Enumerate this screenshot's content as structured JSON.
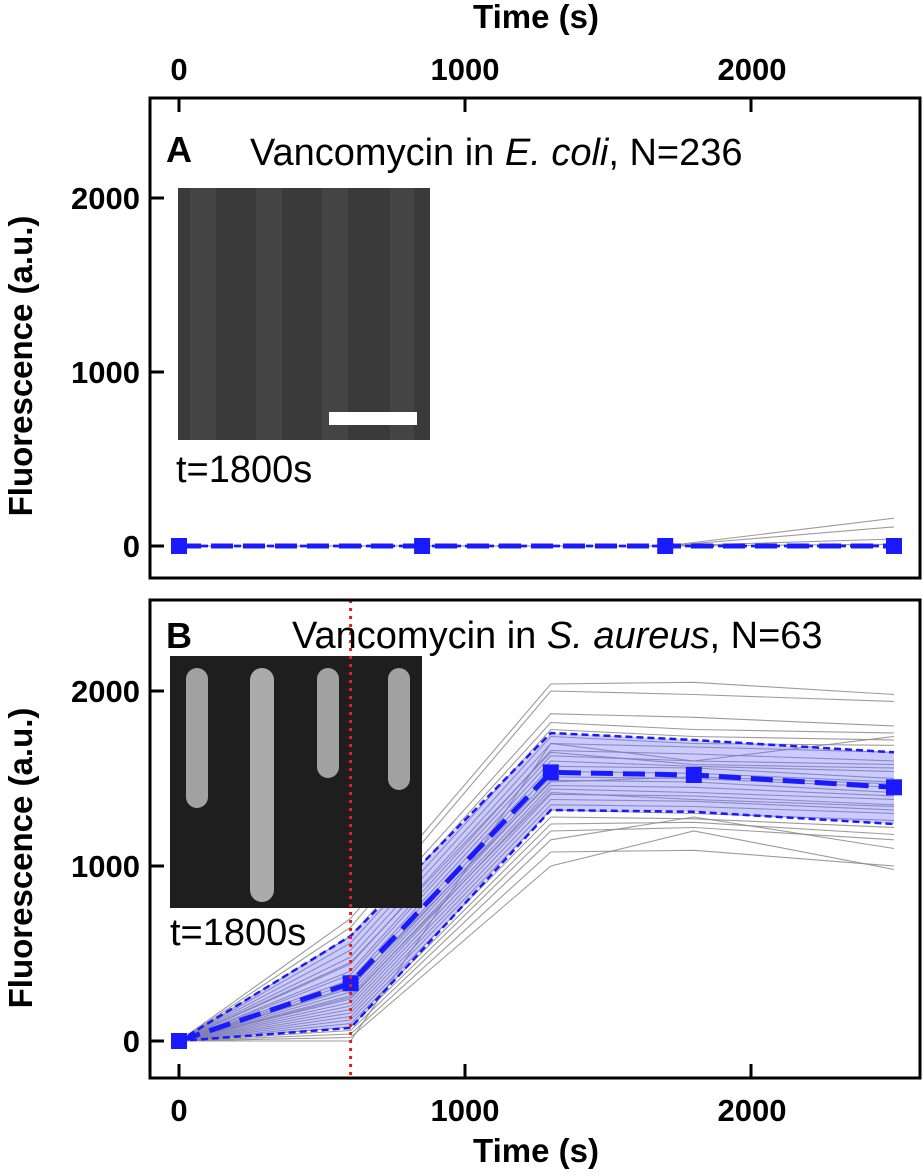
{
  "figure": {
    "top_axis": {
      "title": "Time (s)",
      "ticks": [
        "0",
        "1000",
        "2000"
      ]
    },
    "bottom_axis": {
      "title": "Time (s)",
      "ticks": [
        "0",
        "1000",
        "2000"
      ]
    }
  },
  "chart_data": [
    {
      "type": "line",
      "panel": "A",
      "title_prefix": "Vancomycin in ",
      "title_species": "E. coli",
      "title_suffix": ", N=236",
      "xlabel": "Time (s)",
      "ylabel": "Fluorescence (a.u.)",
      "xlim": [
        -100,
        2600
      ],
      "ylim": [
        -150,
        2500
      ],
      "x_axis_position": "top",
      "xticks": [
        0,
        1000,
        2000
      ],
      "yticks": [
        0,
        1000,
        2000
      ],
      "ytick_labels": [
        "0",
        "1000",
        "2000"
      ],
      "grid": false,
      "mean_series": {
        "x": [
          0,
          850,
          1700,
          2500
        ],
        "y": [
          0,
          0,
          0,
          0
        ],
        "color": "#1a1aff"
      },
      "band": {
        "upper": [
          0,
          0,
          0,
          0
        ],
        "lower": [
          0,
          0,
          0,
          0
        ]
      },
      "traces": [
        {
          "x": [
            0,
            850,
            1700,
            2500
          ],
          "y": [
            0,
            0,
            0,
            160
          ]
        },
        {
          "x": [
            0,
            850,
            1700,
            2500
          ],
          "y": [
            0,
            0,
            0,
            110
          ]
        },
        {
          "x": [
            0,
            850,
            1700,
            2500
          ],
          "y": [
            0,
            0,
            0,
            40
          ]
        },
        {
          "x": [
            0,
            850,
            1700,
            2500
          ],
          "y": [
            0,
            0,
            0,
            10
          ]
        }
      ],
      "inset": {
        "label": "t=1800s",
        "background": "#3a3a3a"
      }
    },
    {
      "type": "line",
      "panel": "B",
      "title_prefix": "Vancomycin in ",
      "title_species": "S. aureus",
      "title_suffix": ", N=63",
      "xlabel": "Time (s)",
      "ylabel": "Fluorescence (a.u.)",
      "xlim": [
        -100,
        2600
      ],
      "ylim": [
        -200,
        2500
      ],
      "xticks": [
        0,
        1000,
        2000
      ],
      "yticks": [
        0,
        1000,
        2000
      ],
      "ytick_labels": [
        "0",
        "1000",
        "2000"
      ],
      "grid": false,
      "vline_x": 600,
      "vline_color": "#e8201a",
      "mean_series": {
        "x": [
          0,
          600,
          1300,
          1800,
          2500
        ],
        "y": [
          0,
          330,
          1535,
          1520,
          1450
        ],
        "color": "#1a1aff"
      },
      "band": {
        "upper": [
          0,
          600,
          1760,
          1720,
          1650
        ],
        "lower": [
          0,
          75,
          1320,
          1310,
          1240
        ]
      },
      "traces": [
        {
          "x": [
            0,
            600,
            1300,
            1800,
            2500
          ],
          "y": [
            0,
            700,
            2040,
            2050,
            1980
          ]
        },
        {
          "x": [
            0,
            600,
            1300,
            1800,
            2500
          ],
          "y": [
            0,
            650,
            2000,
            1980,
            1940
          ]
        },
        {
          "x": [
            0,
            600,
            1300,
            1800,
            2500
          ],
          "y": [
            0,
            600,
            1870,
            1850,
            1800
          ]
        },
        {
          "x": [
            0,
            600,
            1300,
            1800,
            2500
          ],
          "y": [
            0,
            560,
            1820,
            1780,
            1760
          ]
        },
        {
          "x": [
            0,
            600,
            1300,
            1800,
            2500
          ],
          "y": [
            0,
            520,
            1780,
            1740,
            1720
          ]
        },
        {
          "x": [
            0,
            600,
            1300,
            1800,
            2500
          ],
          "y": [
            0,
            480,
            1740,
            1700,
            1690
          ]
        },
        {
          "x": [
            0,
            600,
            1300,
            1800,
            2500
          ],
          "y": [
            0,
            440,
            1700,
            1680,
            1650
          ]
        },
        {
          "x": [
            0,
            600,
            1300,
            1800,
            2500
          ],
          "y": [
            0,
            400,
            1660,
            1640,
            1600
          ]
        },
        {
          "x": [
            0,
            600,
            1300,
            1800,
            2500
          ],
          "y": [
            0,
            380,
            1630,
            1600,
            1580
          ]
        },
        {
          "x": [
            0,
            600,
            1300,
            1800,
            2500
          ],
          "y": [
            0,
            350,
            1600,
            1570,
            1540
          ]
        },
        {
          "x": [
            0,
            600,
            1300,
            1800,
            2500
          ],
          "y": [
            0,
            330,
            1570,
            1560,
            1500
          ]
        },
        {
          "x": [
            0,
            600,
            1300,
            1800,
            2500
          ],
          "y": [
            0,
            300,
            1540,
            1530,
            1480
          ]
        },
        {
          "x": [
            0,
            600,
            1300,
            1800,
            2500
          ],
          "y": [
            0,
            280,
            1510,
            1500,
            1450
          ]
        },
        {
          "x": [
            0,
            600,
            1300,
            1800,
            2500
          ],
          "y": [
            0,
            260,
            1490,
            1480,
            1420
          ]
        },
        {
          "x": [
            0,
            600,
            1300,
            1800,
            2500
          ],
          "y": [
            0,
            240,
            1460,
            1450,
            1400
          ]
        },
        {
          "x": [
            0,
            600,
            1300,
            1800,
            2500
          ],
          "y": [
            0,
            220,
            1440,
            1420,
            1380
          ]
        },
        {
          "x": [
            0,
            600,
            1300,
            1800,
            2500
          ],
          "y": [
            0,
            200,
            1410,
            1400,
            1350
          ]
        },
        {
          "x": [
            0,
            600,
            1300,
            1800,
            2500
          ],
          "y": [
            0,
            180,
            1380,
            1370,
            1320
          ]
        },
        {
          "x": [
            0,
            600,
            1300,
            1800,
            2500
          ],
          "y": [
            0,
            160,
            1350,
            1340,
            1300
          ]
        },
        {
          "x": [
            0,
            600,
            1300,
            1800,
            2500
          ],
          "y": [
            0,
            140,
            1320,
            1300,
            1260
          ]
        },
        {
          "x": [
            0,
            600,
            1300,
            1800,
            2500
          ],
          "y": [
            0,
            120,
            1280,
            1270,
            1220
          ]
        },
        {
          "x": [
            0,
            600,
            1300,
            1800,
            2500
          ],
          "y": [
            0,
            100,
            1240,
            1250,
            1180
          ]
        },
        {
          "x": [
            0,
            600,
            1300,
            1800,
            2500
          ],
          "y": [
            0,
            80,
            1200,
            1220,
            1150
          ]
        },
        {
          "x": [
            0,
            600,
            1300,
            1800,
            2500
          ],
          "y": [
            0,
            60,
            1150,
            1280,
            1100
          ]
        },
        {
          "x": [
            0,
            600,
            1300,
            1800,
            2500
          ],
          "y": [
            0,
            40,
            1080,
            1090,
            1000
          ]
        },
        {
          "x": [
            0,
            600,
            1300,
            1800,
            2500
          ],
          "y": [
            0,
            20,
            1000,
            1200,
            980
          ]
        },
        {
          "x": [
            0,
            600,
            1300,
            1800,
            2500
          ],
          "y": [
            0,
            0,
            1700,
            1600,
            1740
          ]
        },
        {
          "x": [
            0,
            600,
            1300,
            1800,
            2500
          ],
          "y": [
            0,
            450,
            1650,
            1580,
            1560
          ]
        },
        {
          "x": [
            0,
            600,
            1300,
            1800,
            2500
          ],
          "y": [
            0,
            310,
            1480,
            1510,
            1470
          ]
        },
        {
          "x": [
            0,
            600,
            1300,
            1800,
            2500
          ],
          "y": [
            0,
            250,
            1420,
            1380,
            1340
          ]
        }
      ],
      "inset": {
        "label": "t=1800s",
        "background": "#1e1e1e"
      }
    }
  ]
}
